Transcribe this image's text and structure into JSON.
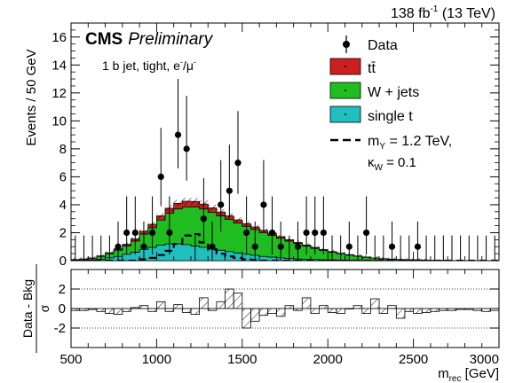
{
  "header": {
    "lumi": "138 fb",
    "lumi_sup": "-1",
    "energy": " (13 TeV)",
    "experiment": "CMS",
    "status": "Preliminary",
    "selection_a": "1 b jet, tight, e",
    "selection_sup_a": "-",
    "selection_b": "/μ",
    "selection_sup_b": "-"
  },
  "legend": {
    "data": "Data",
    "ttbar": "tt̄",
    "wjets": "W + jets",
    "singlet": "single t",
    "signal_a": "m",
    "signal_sub": "Y",
    "signal_b": " = 1.2 TeV,",
    "kappa_a": "κ",
    "kappa_sub": "W",
    "kappa_b": " = 0.1"
  },
  "colors": {
    "ttbar": "#cc1f1f",
    "wjets": "#1fbd1f",
    "singlet": "#1fbfbf",
    "data": "#000000",
    "hatch": "#000000"
  },
  "chart_data": {
    "type": "bar",
    "xlabel_main": "m",
    "xlabel_sub": "rec",
    "xlabel_unit": " [GeV]",
    "ylabel": "Events / 50 GeV",
    "ratio_ylabel_num": "Data - Bkg",
    "ratio_ylabel_den": "σ",
    "xlim": [
      500,
      3000
    ],
    "ylim": [
      0,
      17
    ],
    "ratio_ylim": [
      -4,
      4
    ],
    "x_ticks": [
      500,
      1000,
      1500,
      2000,
      2500,
      3000
    ],
    "y_ticks": [
      0,
      2,
      4,
      6,
      8,
      10,
      12,
      14,
      16
    ],
    "ratio_ticks": [
      -2,
      0,
      2
    ],
    "bin_width": 50,
    "bin_edges_start": 500,
    "series": [
      {
        "name": "single t",
        "values": [
          0.02,
          0.03,
          0.05,
          0.1,
          0.2,
          0.3,
          0.45,
          0.6,
          0.8,
          0.95,
          1.1,
          1.2,
          1.2,
          1.15,
          1.05,
          0.95,
          0.85,
          0.75,
          0.65,
          0.55,
          0.45,
          0.38,
          0.3,
          0.25,
          0.2,
          0.15,
          0.12,
          0.1,
          0.08,
          0.06,
          0.05,
          0.04,
          0.03,
          0.03,
          0.02,
          0.02,
          0.01,
          0.01,
          0.01,
          0.01,
          0.01,
          0,
          0,
          0,
          0,
          0,
          0,
          0,
          0,
          0
        ]
      },
      {
        "name": "W + jets",
        "values": [
          0.05,
          0.08,
          0.12,
          0.2,
          0.3,
          0.45,
          0.6,
          0.8,
          1.1,
          1.4,
          1.8,
          2.2,
          2.5,
          2.7,
          2.8,
          2.75,
          2.6,
          2.45,
          2.3,
          2.15,
          2.0,
          1.85,
          1.7,
          1.55,
          1.4,
          1.25,
          1.1,
          0.95,
          0.8,
          0.68,
          0.56,
          0.46,
          0.37,
          0.29,
          0.22,
          0.16,
          0.12,
          0.09,
          0.07,
          0.05,
          0.04,
          0.03,
          0.02,
          0.02,
          0.01,
          0.01,
          0.01,
          0,
          0,
          0
        ]
      },
      {
        "name": "tt̄",
        "values": [
          0.01,
          0.01,
          0.02,
          0.04,
          0.06,
          0.09,
          0.12,
          0.15,
          0.2,
          0.25,
          0.3,
          0.35,
          0.4,
          0.4,
          0.38,
          0.35,
          0.32,
          0.28,
          0.25,
          0.22,
          0.2,
          0.18,
          0.16,
          0.14,
          0.12,
          0.1,
          0.08,
          0.07,
          0.06,
          0.05,
          0.04,
          0.03,
          0.03,
          0.02,
          0.02,
          0.01,
          0.01,
          0.01,
          0,
          0,
          0,
          0,
          0,
          0,
          0,
          0,
          0,
          0,
          0,
          0
        ]
      }
    ],
    "signal": {
      "name": "m_Y = 1.2 TeV, κ_W = 0.1",
      "values": [
        0,
        0,
        0,
        0,
        0,
        0,
        0,
        0,
        0.1,
        0.2,
        0.4,
        0.7,
        1.2,
        1.8,
        1.9,
        1.3,
        0.8,
        0.5,
        0.3,
        0.2,
        0.1,
        0.05,
        0,
        0,
        0,
        0,
        0,
        0,
        0,
        0,
        0,
        0,
        0,
        0,
        0,
        0,
        0,
        0,
        0,
        0,
        0,
        0,
        0,
        0,
        0,
        0,
        0,
        0,
        0,
        0
      ]
    },
    "data_points": [
      {
        "x": 775,
        "y": 1,
        "err": 1.8
      },
      {
        "x": 825,
        "y": 2,
        "err": 2.6
      },
      {
        "x": 875,
        "y": 2,
        "err": 2.6
      },
      {
        "x": 925,
        "y": 1,
        "err": 1.8
      },
      {
        "x": 975,
        "y": 2,
        "err": 2.6
      },
      {
        "x": 1025,
        "y": 6,
        "err": 3.5
      },
      {
        "x": 1075,
        "y": 2,
        "err": 2.6
      },
      {
        "x": 1125,
        "y": 9,
        "err": 4.0
      },
      {
        "x": 1175,
        "y": 8,
        "err": 3.8
      },
      {
        "x": 1275,
        "y": 3,
        "err": 2.9
      },
      {
        "x": 1325,
        "y": 1,
        "err": 1.8
      },
      {
        "x": 1375,
        "y": 4,
        "err": 3.2
      },
      {
        "x": 1425,
        "y": 5,
        "err": 3.3
      },
      {
        "x": 1475,
        "y": 7,
        "err": 3.7
      },
      {
        "x": 1525,
        "y": 2,
        "err": 2.6
      },
      {
        "x": 1575,
        "y": 1,
        "err": 1.8
      },
      {
        "x": 1625,
        "y": 4,
        "err": 3.2
      },
      {
        "x": 1675,
        "y": 2,
        "err": 2.6
      },
      {
        "x": 1725,
        "y": 1,
        "err": 1.8
      },
      {
        "x": 1825,
        "y": 1,
        "err": 1.8
      },
      {
        "x": 1875,
        "y": 2,
        "err": 2.6
      },
      {
        "x": 1925,
        "y": 2,
        "err": 2.6
      },
      {
        "x": 1975,
        "y": 2,
        "err": 2.6
      },
      {
        "x": 2125,
        "y": 1,
        "err": 1.8
      },
      {
        "x": 2225,
        "y": 2,
        "err": 2.6
      },
      {
        "x": 2375,
        "y": 1,
        "err": 1.8
      },
      {
        "x": 2525,
        "y": 1,
        "err": 1.8
      }
    ],
    "zero_bins_errup": 1.8,
    "pulls": [
      -0.2,
      -0.2,
      -0.1,
      -0.3,
      -0.5,
      -0.6,
      -0.3,
      0.1,
      0.3,
      -0.3,
      0.7,
      -0.3,
      0.4,
      -0.4,
      -0.6,
      1.1,
      -0.2,
      0.7,
      2.0,
      1.6,
      -2.0,
      -1.3,
      -0.7,
      -0.5,
      -0.8,
      0.3,
      -0.2,
      1.1,
      -0.5,
      0.3,
      -0.4,
      -0.5,
      0,
      0.3,
      -0.5,
      1.0,
      -0.5,
      0.3,
      -1.0,
      -0.3,
      -0.5,
      -0.4,
      -0.3,
      -0.2,
      -0.2,
      -0.1,
      -0.1,
      -0.2,
      -0.3,
      -0.2
    ],
    "grid": "dotted lines at ±2 and 0 in ratio panel",
    "legend_position": "top-right"
  }
}
